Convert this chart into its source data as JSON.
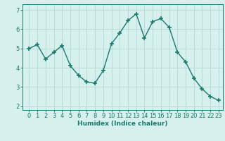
{
  "x": [
    0,
    1,
    2,
    3,
    4,
    5,
    6,
    7,
    8,
    9,
    10,
    11,
    12,
    13,
    14,
    15,
    16,
    17,
    18,
    19,
    20,
    21,
    22,
    23
  ],
  "y": [
    5.0,
    5.2,
    4.45,
    4.8,
    5.15,
    4.1,
    3.6,
    3.25,
    3.2,
    3.85,
    5.25,
    5.8,
    6.45,
    6.8,
    5.55,
    6.4,
    6.55,
    6.1,
    4.8,
    4.3,
    3.45,
    2.9,
    2.5,
    2.3
  ],
  "line_color": "#1a7a6e",
  "marker": "+",
  "markersize": 4,
  "markeredgewidth": 1.2,
  "linewidth": 1.0,
  "bg_color": "#d6f0ee",
  "grid_color": "#b8dbd8",
  "xlabel": "Humidex (Indice chaleur)",
  "ylim": [
    1.8,
    7.3
  ],
  "yticks": [
    2,
    3,
    4,
    5,
    6,
    7
  ],
  "xticks": [
    0,
    1,
    2,
    3,
    4,
    5,
    6,
    7,
    8,
    9,
    10,
    11,
    12,
    13,
    14,
    15,
    16,
    17,
    18,
    19,
    20,
    21,
    22,
    23
  ],
  "xlabel_fontsize": 6.5,
  "tick_fontsize": 6.0
}
